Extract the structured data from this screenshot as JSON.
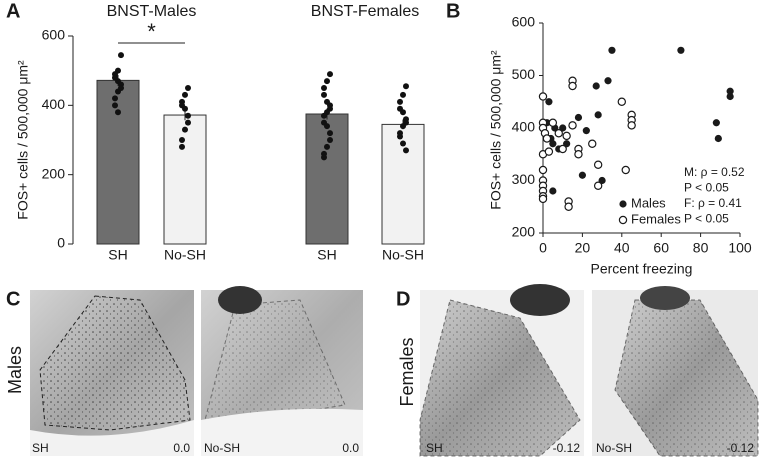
{
  "panel_labels": [
    "A",
    "B",
    "C",
    "D"
  ],
  "chart_data": [
    {
      "type": "bar",
      "ylabel": "FOS+ cells / 500,000 μm²",
      "groups": [
        "BNST-Males",
        "BNST-Females"
      ],
      "categories": [
        "SH",
        "No-SH",
        "SH",
        "No-SH"
      ],
      "values": [
        472,
        372,
        375,
        345
      ],
      "errors": [
        16,
        15,
        16,
        14
      ],
      "colors": [
        "#6e6e6e",
        "#f2f2f2",
        "#6e6e6e",
        "#f2f2f2"
      ],
      "points": [
        [
          545,
          500,
          490,
          480,
          470,
          460,
          450,
          440,
          420,
          400,
          380
        ],
        [
          450,
          430,
          410,
          400,
          390,
          370,
          350,
          330,
          300,
          280
        ],
        [
          490,
          470,
          450,
          430,
          410,
          400,
          390,
          380,
          370,
          350,
          340,
          320,
          300,
          280,
          260,
          250
        ],
        [
          455,
          430,
          410,
          390,
          380,
          360,
          350,
          340,
          320,
          310,
          290,
          270
        ]
      ],
      "annotation": "*",
      "ylim": [
        0,
        600
      ],
      "yticks": [
        0,
        200,
        400,
        600
      ]
    },
    {
      "type": "scatter",
      "ylabel": "FOS+ cells / 500,000 μm²",
      "xlabel": "Percent freezing",
      "series": [
        {
          "name": "Males",
          "color": "#1a1a1a",
          "marker": "filled",
          "x": [
            0,
            2,
            3,
            4,
            5,
            5,
            6,
            8,
            10,
            12,
            18,
            20,
            22,
            27,
            28,
            30,
            33,
            35,
            70,
            88,
            89,
            95,
            95
          ],
          "values": [
            400,
            410,
            450,
            380,
            370,
            280,
            400,
            360,
            400,
            370,
            420,
            310,
            395,
            480,
            425,
            300,
            490,
            548,
            548,
            410,
            380,
            470,
            460
          ]
        },
        {
          "name": "Females",
          "color": "#1a1a1a",
          "marker": "open",
          "x": [
            0,
            0,
            0,
            1,
            0,
            0,
            0,
            0,
            0,
            0,
            0,
            2,
            3,
            5,
            8,
            10,
            12,
            13,
            13,
            15,
            15,
            15,
            18,
            18,
            25,
            28,
            28,
            40,
            42,
            45,
            45,
            45
          ],
          "values": [
            460,
            410,
            400,
            390,
            350,
            320,
            300,
            290,
            280,
            270,
            265,
            380,
            355,
            410,
            390,
            360,
            385,
            260,
            250,
            490,
            480,
            405,
            360,
            350,
            370,
            330,
            290,
            450,
            320,
            425,
            415,
            405
          ]
        }
      ],
      "annotations": [
        "M: ρ = 0.52",
        "P < 0.05",
        "F: ρ = 0.41",
        "P < 0.05"
      ],
      "xlim": [
        0,
        100
      ],
      "xticks": [
        0,
        20,
        40,
        60,
        80,
        100
      ],
      "ylim": [
        200,
        600
      ],
      "yticks": [
        200,
        300,
        400,
        500,
        600
      ]
    }
  ],
  "row_labels": [
    "Males",
    "Females"
  ],
  "images": [
    {
      "caption": "SH",
      "level": "0.0"
    },
    {
      "caption": "No-SH",
      "level": "0.0"
    },
    {
      "caption": "SH",
      "level": "-0.12"
    },
    {
      "caption": "No-SH",
      "level": "-0.12"
    }
  ]
}
